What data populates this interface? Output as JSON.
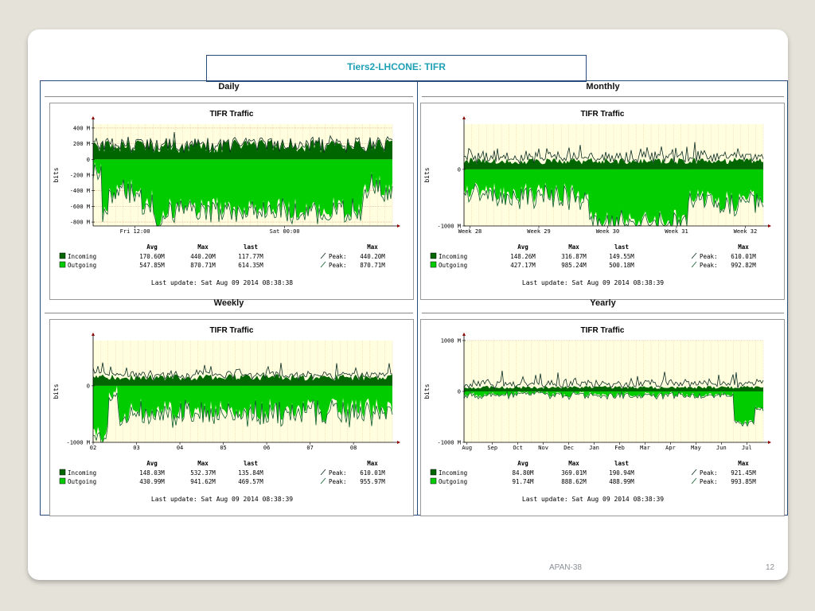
{
  "slide": {
    "title": "Tiers2-LHCONE: TIFR",
    "footer_left": "APAN-38",
    "page_number": "12"
  },
  "colors": {
    "incoming": "#006600",
    "outgoing": "#00cc00",
    "plot_bg": "#ffffe0",
    "grid": "#f0c8a0",
    "title_text": "#1fa0b4"
  },
  "chart_data": [
    {
      "panel_label": "Daily",
      "type": "area",
      "title": "TIFR Traffic",
      "ylabel": "bits",
      "ylim": [
        -850,
        450
      ],
      "yticks": [
        {
          "v": 400,
          "label": "400 M"
        },
        {
          "v": 200,
          "label": "200 M"
        },
        {
          "v": 0,
          "label": "0"
        },
        {
          "v": -200,
          "label": "-200 M"
        },
        {
          "v": -400,
          "label": "-400 M"
        },
        {
          "v": -600,
          "label": "-600 M"
        },
        {
          "v": -800,
          "label": "-800 M"
        }
      ],
      "xticks": [
        {
          "x": 0.14,
          "label": "Fri 12:00"
        },
        {
          "x": 0.64,
          "label": "Sat 00:00"
        }
      ],
      "series": [
        {
          "name": "Incoming",
          "avg": "170.60M",
          "max": "440.20M",
          "last": "117.77M",
          "peak": "440.20M"
        },
        {
          "name": "Outgoing",
          "avg": "547.85M",
          "max": "870.71M",
          "last": "614.35M",
          "peak": "870.71M"
        }
      ],
      "headers": {
        "avg": "Avg",
        "max": "Max",
        "last": "last",
        "peak_max": "Max",
        "peak": "Peak:"
      },
      "last_update": "Last update: Sat Aug 09 2014 08:38:38",
      "profile": {
        "in_mean": 170,
        "in_amp": 90,
        "in_line_extra": 90,
        "out_segments": [
          [
            0,
            0.03,
            -120
          ],
          [
            0.03,
            0.05,
            -700
          ],
          [
            0.05,
            0.16,
            -370
          ],
          [
            0.16,
            0.2,
            -520
          ],
          [
            0.2,
            0.23,
            -800
          ],
          [
            0.23,
            0.9,
            -620
          ],
          [
            0.9,
            0.96,
            -300
          ],
          [
            0.96,
            1.0,
            -420
          ]
        ],
        "out_amp": 140,
        "seed": 11
      }
    },
    {
      "panel_label": "Monthly",
      "type": "area",
      "title": "TIFR Traffic",
      "ylabel": "bits",
      "ylim": [
        -1000,
        800
      ],
      "yticks": [
        {
          "v": 0,
          "label": "0"
        },
        {
          "v": -1000,
          "label": "-1000 M"
        }
      ],
      "xticks": [
        {
          "x": 0.02,
          "label": "Week 28"
        },
        {
          "x": 0.25,
          "label": "Week 29"
        },
        {
          "x": 0.48,
          "label": "Week 30"
        },
        {
          "x": 0.71,
          "label": "Week 31"
        },
        {
          "x": 0.94,
          "label": "Week 32"
        }
      ],
      "series": [
        {
          "name": "Incoming",
          "avg": "148.26M",
          "max": "316.87M",
          "last": "149.55M",
          "peak": "610.01M"
        },
        {
          "name": "Outgoing",
          "avg": "427.17M",
          "max": "985.24M",
          "last": "500.18M",
          "peak": "992.82M"
        }
      ],
      "headers": {
        "avg": "Avg",
        "max": "Max",
        "last": "last",
        "peak_max": "Max",
        "peak": "Peak:"
      },
      "last_update": "Last update: Sat Aug 09 2014 08:38:39",
      "profile": {
        "in_mean": 150,
        "in_amp": 60,
        "in_line_extra": 350,
        "out_segments": [
          [
            0,
            0.42,
            -420
          ],
          [
            0.42,
            0.75,
            -900
          ],
          [
            0.75,
            0.79,
            -450
          ],
          [
            0.79,
            1.0,
            -550
          ]
        ],
        "out_amp": 200,
        "seed": 23
      }
    },
    {
      "panel_label": "Weekly",
      "type": "area",
      "title": "TIFR Traffic",
      "ylabel": "bits",
      "ylim": [
        -1000,
        800
      ],
      "yticks": [
        {
          "v": 0,
          "label": "0"
        },
        {
          "v": -1000,
          "label": "-1000 M"
        }
      ],
      "xticks": [
        {
          "x": 0.0,
          "label": "02"
        },
        {
          "x": 0.145,
          "label": "03"
        },
        {
          "x": 0.29,
          "label": "04"
        },
        {
          "x": 0.435,
          "label": "05"
        },
        {
          "x": 0.58,
          "label": "06"
        },
        {
          "x": 0.725,
          "label": "07"
        },
        {
          "x": 0.87,
          "label": "08"
        }
      ],
      "series": [
        {
          "name": "Incoming",
          "avg": "148.03M",
          "max": "532.37M",
          "last": "135.84M",
          "peak": "610.01M"
        },
        {
          "name": "Outgoing",
          "avg": "430.99M",
          "max": "941.62M",
          "last": "469.57M",
          "peak": "955.97M"
        }
      ],
      "headers": {
        "avg": "Avg",
        "max": "Max",
        "last": "last",
        "peak_max": "Max",
        "peak": "Peak:"
      },
      "last_update": "Last update: Sat Aug 09 2014 08:38:39",
      "profile": {
        "in_mean": 150,
        "in_amp": 60,
        "in_line_extra": 220,
        "out_segments": [
          [
            0,
            0.05,
            -850
          ],
          [
            0.05,
            0.08,
            -30
          ],
          [
            0.08,
            1.0,
            -430
          ]
        ],
        "out_amp": 220,
        "seed": 37
      }
    },
    {
      "panel_label": "Yearly",
      "type": "area",
      "title": "TIFR Traffic",
      "ylabel": "bits",
      "ylim": [
        -1000,
        1000
      ],
      "yticks": [
        {
          "v": 1000,
          "label": "1000 M"
        },
        {
          "v": 0,
          "label": "0"
        },
        {
          "v": -1000,
          "label": "-1000 M"
        }
      ],
      "xticks": [
        {
          "x": 0.01,
          "label": "Aug"
        },
        {
          "x": 0.095,
          "label": "Sep"
        },
        {
          "x": 0.18,
          "label": "Oct"
        },
        {
          "x": 0.265,
          "label": "Nov"
        },
        {
          "x": 0.35,
          "label": "Dec"
        },
        {
          "x": 0.435,
          "label": "Jan"
        },
        {
          "x": 0.52,
          "label": "Feb"
        },
        {
          "x": 0.605,
          "label": "Mar"
        },
        {
          "x": 0.69,
          "label": "Apr"
        },
        {
          "x": 0.775,
          "label": "May"
        },
        {
          "x": 0.86,
          "label": "Jun"
        },
        {
          "x": 0.945,
          "label": "Jul"
        }
      ],
      "series": [
        {
          "name": "Incoming",
          "avg": "84.80M",
          "max": "369.01M",
          "last": "190.94M",
          "peak": "921.45M"
        },
        {
          "name": "Outgoing",
          "avg": "91.74M",
          "max": "888.62M",
          "last": "488.99M",
          "peak": "993.85M"
        }
      ],
      "headers": {
        "avg": "Avg",
        "max": "Max",
        "last": "last",
        "peak_max": "Max",
        "peak": "Peak:"
      },
      "last_update": "Last update: Sat Aug 09 2014 08:38:39",
      "profile": {
        "in_mean": 80,
        "in_amp": 30,
        "in_line_extra": 350,
        "out_segments": [
          [
            0,
            0.18,
            -60
          ],
          [
            0.18,
            0.28,
            -20
          ],
          [
            0.28,
            0.9,
            -60
          ],
          [
            0.9,
            0.97,
            -600
          ],
          [
            0.97,
            1.0,
            -300
          ]
        ],
        "out_amp": 60,
        "seed": 53
      }
    }
  ]
}
